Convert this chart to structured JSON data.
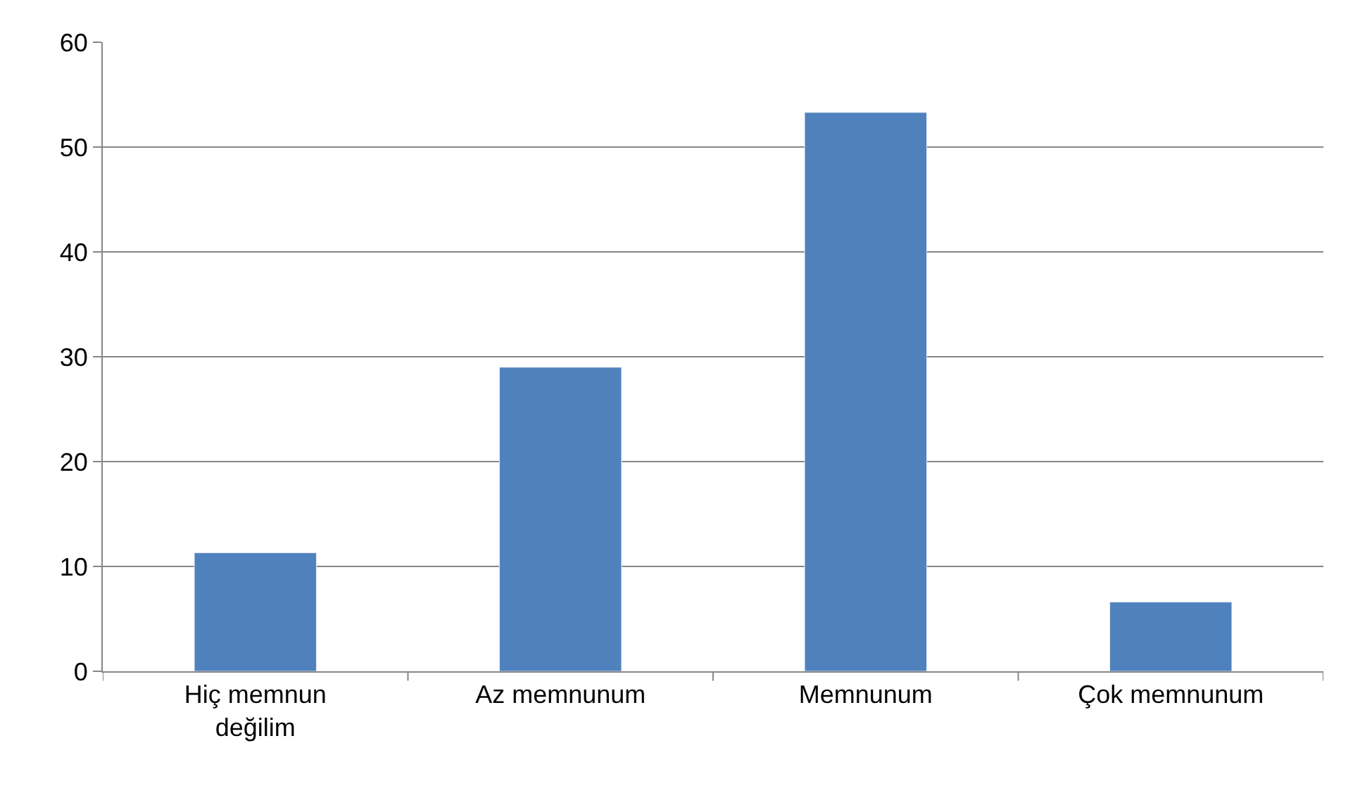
{
  "chart_data": {
    "type": "bar",
    "categories": [
      "Hiç memnun değilim",
      "Az memnunum",
      "Memnunum",
      "Çok memnunum"
    ],
    "values": [
      11.3,
      29.0,
      53.3,
      6.6
    ],
    "color": "#4f81bd",
    "ylim": [
      0,
      60
    ],
    "yticks": [
      0,
      10,
      20,
      30,
      40,
      50,
      60
    ],
    "grid": "y"
  }
}
